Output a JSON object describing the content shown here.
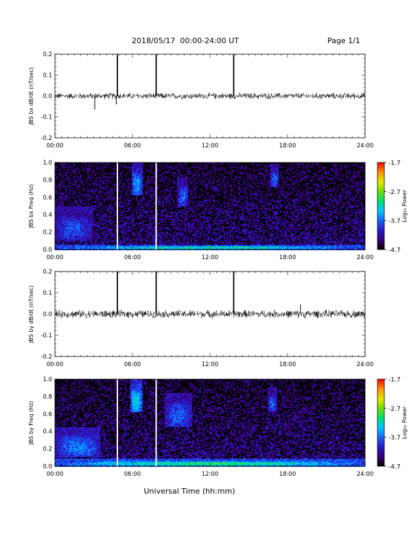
{
  "header": {
    "date_range": "2018/05/17  00:00-24:00 UT",
    "page": "Page 1/1"
  },
  "footer": {
    "xlabel": "Universal Time (hh:mm)"
  },
  "colorbar": {
    "label": "Log₁₀ Power",
    "ticks": [
      "-1.7",
      "-2.7",
      "-3.7",
      "-4.7"
    ],
    "range": [
      -4.7,
      -1.7
    ],
    "colors": [
      "#000000",
      "#3a007a",
      "#2a18c8",
      "#1466ff",
      "#00c8ff",
      "#00e070",
      "#6ee000",
      "#e8e800",
      "#ff9000",
      "#ff0000"
    ]
  },
  "chart_data": [
    {
      "type": "line",
      "ylabel": "JBS bx dB/dt (nT/sec)",
      "xlim": [
        "00:00",
        "24:00"
      ],
      "ylim": [
        -0.2,
        0.2
      ],
      "x_ticks": [
        "00:00",
        "06:00",
        "12:00",
        "18:00",
        "24:00"
      ],
      "y_ticks": [
        "0.2",
        "0.1",
        "0.0",
        "-0.1",
        "-0.2"
      ],
      "baseline": 0.0,
      "noise_amplitude": 0.012,
      "spikes": [
        {
          "time": "04:50",
          "value": 0.2
        },
        {
          "time": "07:50",
          "value": 0.2
        },
        {
          "time": "13:50",
          "value": 0.2
        },
        {
          "time": "03:05",
          "value": -0.065
        },
        {
          "time": "04:45",
          "value": -0.04
        }
      ],
      "series_color": "#000000"
    },
    {
      "type": "heatmap",
      "ylabel": "JBS bx Freq (Hz)",
      "xlim": [
        "00:00",
        "24:00"
      ],
      "ylim": [
        0.0,
        1.0
      ],
      "x_ticks": [
        "00:00",
        "06:00",
        "12:00",
        "18:00",
        "24:00"
      ],
      "y_ticks": [
        "1.0",
        "0.8",
        "0.6",
        "0.4",
        "0.2",
        "0.0"
      ],
      "color_range": [
        -4.7,
        -1.7
      ],
      "data_gaps": [
        "04:50",
        "07:50"
      ],
      "features": [
        {
          "t_start": "05:55",
          "t_end": "06:50",
          "f_low": 0.62,
          "f_high": 1.0,
          "log_power": -3.5
        },
        {
          "t_start": "09:30",
          "t_end": "10:20",
          "f_low": 0.5,
          "f_high": 0.82,
          "log_power": -3.7
        },
        {
          "t_start": "16:40",
          "t_end": "17:20",
          "f_low": 0.72,
          "f_high": 0.98,
          "log_power": -3.7
        },
        {
          "t_start": "00:00",
          "t_end": "03:00",
          "f_low": 0.1,
          "f_high": 0.5,
          "log_power": -3.8
        },
        {
          "t_start": "00:00",
          "t_end": "24:00",
          "f_low": 0.0,
          "f_high": 0.06,
          "log_power": -3.1
        }
      ]
    },
    {
      "type": "line",
      "ylabel": "JBS by dB/dt (nT/sec)",
      "xlim": [
        "00:00",
        "24:00"
      ],
      "ylim": [
        -0.2,
        0.2
      ],
      "x_ticks": [
        "00:00",
        "06:00",
        "12:00",
        "18:00",
        "24:00"
      ],
      "y_ticks": [
        "0.2",
        "0.1",
        "0.0",
        "-0.1",
        "-0.2"
      ],
      "baseline": 0.0,
      "noise_amplitude": 0.015,
      "spikes": [
        {
          "time": "04:50",
          "value": 0.2
        },
        {
          "time": "07:50",
          "value": 0.2
        },
        {
          "time": "13:50",
          "value": 0.2
        },
        {
          "time": "19:00",
          "value": 0.045
        }
      ],
      "series_color": "#000000"
    },
    {
      "type": "heatmap",
      "ylabel": "JBS by Freq (Hz)",
      "xlim": [
        "00:00",
        "24:00"
      ],
      "ylim": [
        0.0,
        1.0
      ],
      "x_ticks": [
        "00:00",
        "06:00",
        "12:00",
        "18:00",
        "24:00"
      ],
      "y_ticks": [
        "1.0",
        "0.8",
        "0.6",
        "0.4",
        "0.2",
        "0.0"
      ],
      "color_range": [
        -4.7,
        -1.7
      ],
      "data_gaps": [
        "04:50",
        "07:50"
      ],
      "features": [
        {
          "t_start": "05:50",
          "t_end": "06:45",
          "f_low": 0.62,
          "f_high": 1.0,
          "log_power": -3.2
        },
        {
          "t_start": "08:30",
          "t_end": "10:40",
          "f_low": 0.45,
          "f_high": 0.85,
          "log_power": -3.7
        },
        {
          "t_start": "16:30",
          "t_end": "17:10",
          "f_low": 0.62,
          "f_high": 0.9,
          "log_power": -3.7
        },
        {
          "t_start": "00:00",
          "t_end": "03:30",
          "f_low": 0.1,
          "f_high": 0.45,
          "log_power": -3.6
        },
        {
          "t_start": "00:00",
          "t_end": "24:00",
          "f_low": 0.0,
          "f_high": 0.08,
          "log_power": -3.0
        }
      ]
    }
  ]
}
